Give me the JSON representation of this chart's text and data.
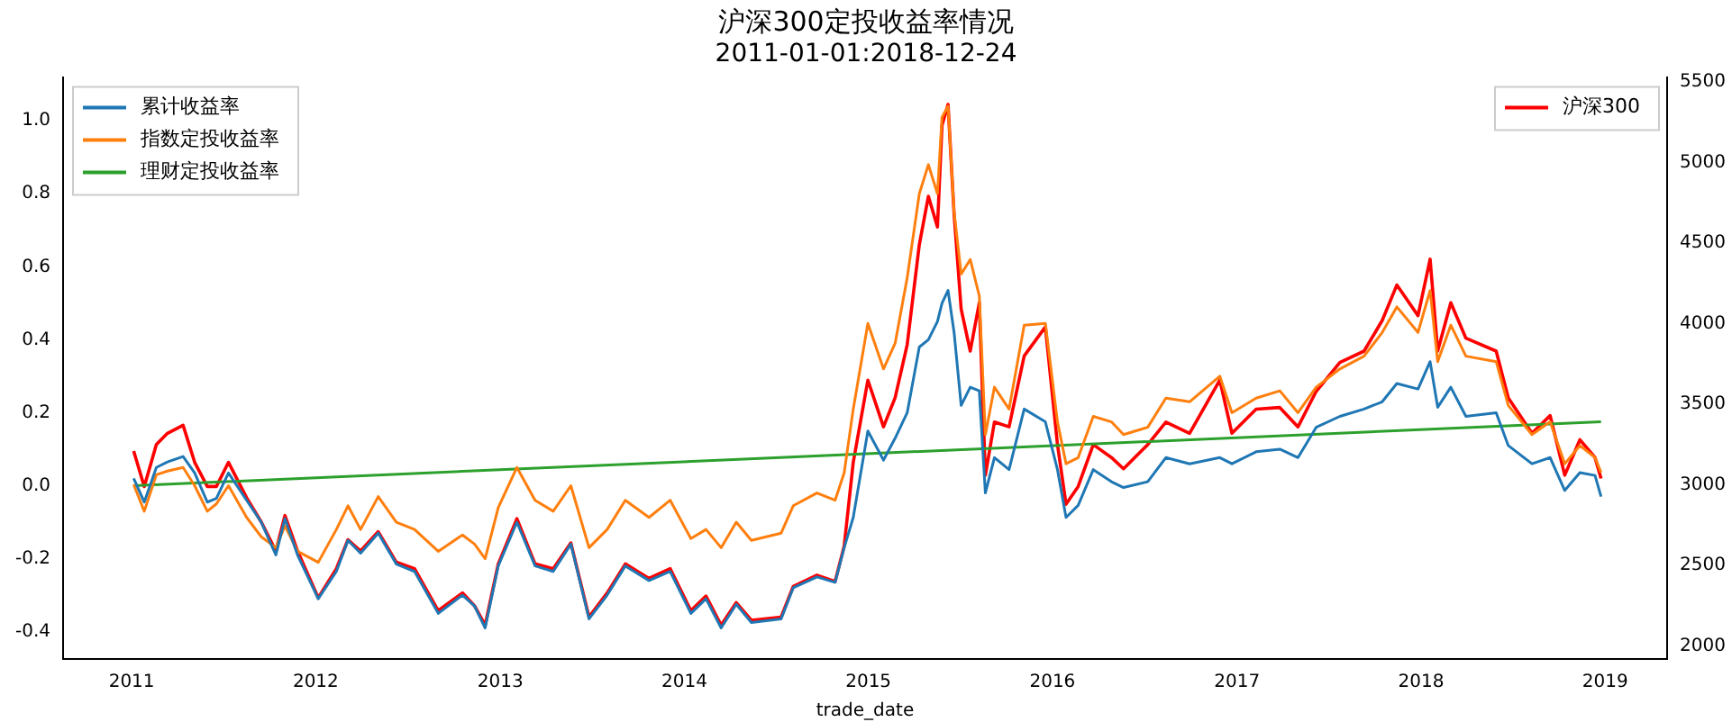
{
  "chart_data": {
    "type": "line",
    "title": "沪深300定投收益率情况",
    "subtitle": "2011-01-01:2018-12-24",
    "xlabel": "trade_date",
    "x": [
      "2011-01-05",
      "2011-01-26",
      "2011-02-19",
      "2011-03-13",
      "2011-04-13",
      "2011-05-06",
      "2011-05-31",
      "2011-06-18",
      "2011-07-12",
      "2011-08-17",
      "2011-09-15",
      "2011-10-14",
      "2011-11-01",
      "2011-11-26",
      "2012-01-06",
      "2012-02-11",
      "2012-03-05",
      "2012-03-30",
      "2012-05-04",
      "2012-06-09",
      "2012-07-15",
      "2012-08-31",
      "2012-10-18",
      "2012-11-11",
      "2012-12-02",
      "2012-12-28",
      "2013-02-03",
      "2013-03-11",
      "2013-04-16",
      "2013-05-21",
      "2013-06-26",
      "2013-08-01",
      "2013-09-06",
      "2013-10-23",
      "2013-12-04",
      "2014-01-14",
      "2014-02-13",
      "2014-03-15",
      "2014-04-14",
      "2014-05-14",
      "2014-07-12",
      "2014-08-05",
      "2014-09-21",
      "2014-10-27",
      "2014-11-14",
      "2014-12-02",
      "2014-12-31",
      "2015-01-31",
      "2015-02-23",
      "2015-03-19",
      "2015-04-12",
      "2015-04-30",
      "2015-05-18",
      "2015-05-27",
      "2015-06-08",
      "2015-06-20",
      "2015-07-04",
      "2015-07-22",
      "2015-08-09",
      "2015-08-21",
      "2015-09-08",
      "2015-10-07",
      "2015-11-06",
      "2015-12-18",
      "2016-01-11",
      "2016-01-28",
      "2016-02-21",
      "2016-03-22",
      "2016-04-27",
      "2016-05-21",
      "2016-07-08",
      "2016-08-13",
      "2016-09-29",
      "2016-11-28",
      "2016-12-22",
      "2017-02-08",
      "2017-03-27",
      "2017-05-02",
      "2017-06-07",
      "2017-07-24",
      "2017-09-10",
      "2017-10-16",
      "2017-11-14",
      "2017-12-26",
      "2018-01-19",
      "2018-02-03",
      "2018-03-01",
      "2018-03-31",
      "2018-05-30",
      "2018-06-23",
      "2018-08-09",
      "2018-09-14",
      "2018-10-13",
      "2018-11-12",
      "2018-12-12",
      "2018-12-24"
    ],
    "series": [
      {
        "name": "累计收益率",
        "color": "#1f77b4",
        "values": [
          0.02,
          -0.045,
          0.05,
          0.065,
          0.08,
          0.035,
          -0.045,
          -0.035,
          0.035,
          -0.04,
          -0.1,
          -0.19,
          -0.09,
          -0.19,
          -0.31,
          -0.235,
          -0.15,
          -0.185,
          -0.13,
          -0.215,
          -0.235,
          -0.35,
          -0.3,
          -0.33,
          -0.39,
          -0.22,
          -0.1,
          -0.22,
          -0.235,
          -0.16,
          -0.365,
          -0.3,
          -0.22,
          -0.26,
          -0.235,
          -0.35,
          -0.31,
          -0.39,
          -0.325,
          -0.375,
          -0.365,
          -0.28,
          -0.25,
          -0.265,
          -0.17,
          -0.087,
          0.15,
          0.07,
          0.13,
          0.2,
          0.38,
          0.4,
          0.45,
          0.5,
          0.535,
          0.42,
          0.22,
          0.27,
          0.26,
          -0.02,
          0.077,
          0.044,
          0.21,
          0.175,
          0.044,
          -0.087,
          -0.054,
          0.044,
          0.011,
          -0.005,
          0.011,
          0.077,
          0.06,
          0.077,
          0.06,
          0.093,
          0.1,
          0.077,
          0.16,
          0.19,
          0.21,
          0.23,
          0.28,
          0.265,
          0.34,
          0.215,
          0.27,
          0.19,
          0.2,
          0.11,
          0.06,
          0.077,
          -0.013,
          0.036,
          0.028,
          -0.03
        ]
      },
      {
        "name": "指数定投收益率",
        "color": "#ff7f0e",
        "values": [
          0.003,
          -0.07,
          0.03,
          0.04,
          0.05,
          0.0,
          -0.07,
          -0.05,
          0.0,
          -0.087,
          -0.14,
          -0.17,
          -0.11,
          -0.18,
          -0.21,
          -0.12,
          -0.055,
          -0.12,
          -0.03,
          -0.1,
          -0.12,
          -0.18,
          -0.135,
          -0.16,
          -0.2,
          -0.06,
          0.05,
          -0.04,
          -0.07,
          0.0,
          -0.17,
          -0.12,
          -0.04,
          -0.087,
          -0.04,
          -0.145,
          -0.12,
          -0.17,
          -0.1,
          -0.15,
          -0.13,
          -0.055,
          -0.02,
          -0.04,
          0.035,
          0.21,
          0.445,
          0.32,
          0.39,
          0.57,
          0.8,
          0.88,
          0.8,
          1.01,
          1.04,
          0.75,
          0.58,
          0.62,
          0.52,
          0.14,
          0.27,
          0.21,
          0.44,
          0.445,
          0.175,
          0.06,
          0.077,
          0.19,
          0.175,
          0.14,
          0.16,
          0.24,
          0.23,
          0.3,
          0.2,
          0.24,
          0.26,
          0.2,
          0.27,
          0.32,
          0.355,
          0.42,
          0.49,
          0.42,
          0.535,
          0.34,
          0.44,
          0.355,
          0.34,
          0.22,
          0.14,
          0.175,
          0.06,
          0.11,
          0.077,
          0.036
        ]
      },
      {
        "name": "理财定投收益率",
        "color": "#2ca02c",
        "x": [
          "2011-01-05",
          "2018-12-24"
        ],
        "values": [
          0.0,
          0.175
        ]
      },
      {
        "name": "沪深300",
        "color": "#ff0000",
        "axis": "y2",
        "values": [
          3210,
          2990,
          3250,
          3320,
          3370,
          3140,
          2990,
          2990,
          3140,
          2920,
          2770,
          2590,
          2810,
          2590,
          2300,
          2480,
          2660,
          2590,
          2710,
          2520,
          2480,
          2220,
          2330,
          2250,
          2130,
          2510,
          2790,
          2510,
          2480,
          2640,
          2180,
          2330,
          2510,
          2420,
          2480,
          2220,
          2310,
          2130,
          2270,
          2160,
          2180,
          2370,
          2440,
          2400,
          2620,
          3140,
          3650,
          3360,
          3540,
          3870,
          4490,
          4790,
          4600,
          5230,
          5360,
          4680,
          4090,
          3830,
          4130,
          3060,
          3390,
          3360,
          3800,
          3980,
          3250,
          2880,
          2990,
          3250,
          3170,
          3100,
          3250,
          3390,
          3320,
          3650,
          3320,
          3470,
          3480,
          3360,
          3580,
          3760,
          3830,
          4020,
          4240,
          4050,
          4400,
          3830,
          4130,
          3910,
          3830,
          3540,
          3320,
          3430,
          3060,
          3280,
          3170,
          3040
        ]
      }
    ],
    "xlim": [
      "2010-08-18",
      "2019-05-04"
    ],
    "xticks": [
      "2011",
      "2012",
      "2013",
      "2014",
      "2015",
      "2016",
      "2017",
      "2018",
      "2019"
    ],
    "ylim": [
      -0.475,
      1.12
    ],
    "yticks": [
      -0.4,
      -0.2,
      {
        "value": 0,
        "label": "0.0"
      },
      0.2,
      0.4,
      0.6,
      0.8,
      {
        "value": 1,
        "label": "1.0"
      }
    ],
    "y2lim": [
      1920,
      5530
    ],
    "y2ticks": [
      2000,
      2500,
      3000,
      3500,
      4000,
      4500,
      5000,
      5500
    ],
    "grid": false,
    "legend": "top left",
    "marker": "none",
    "line_style": "solid"
  }
}
